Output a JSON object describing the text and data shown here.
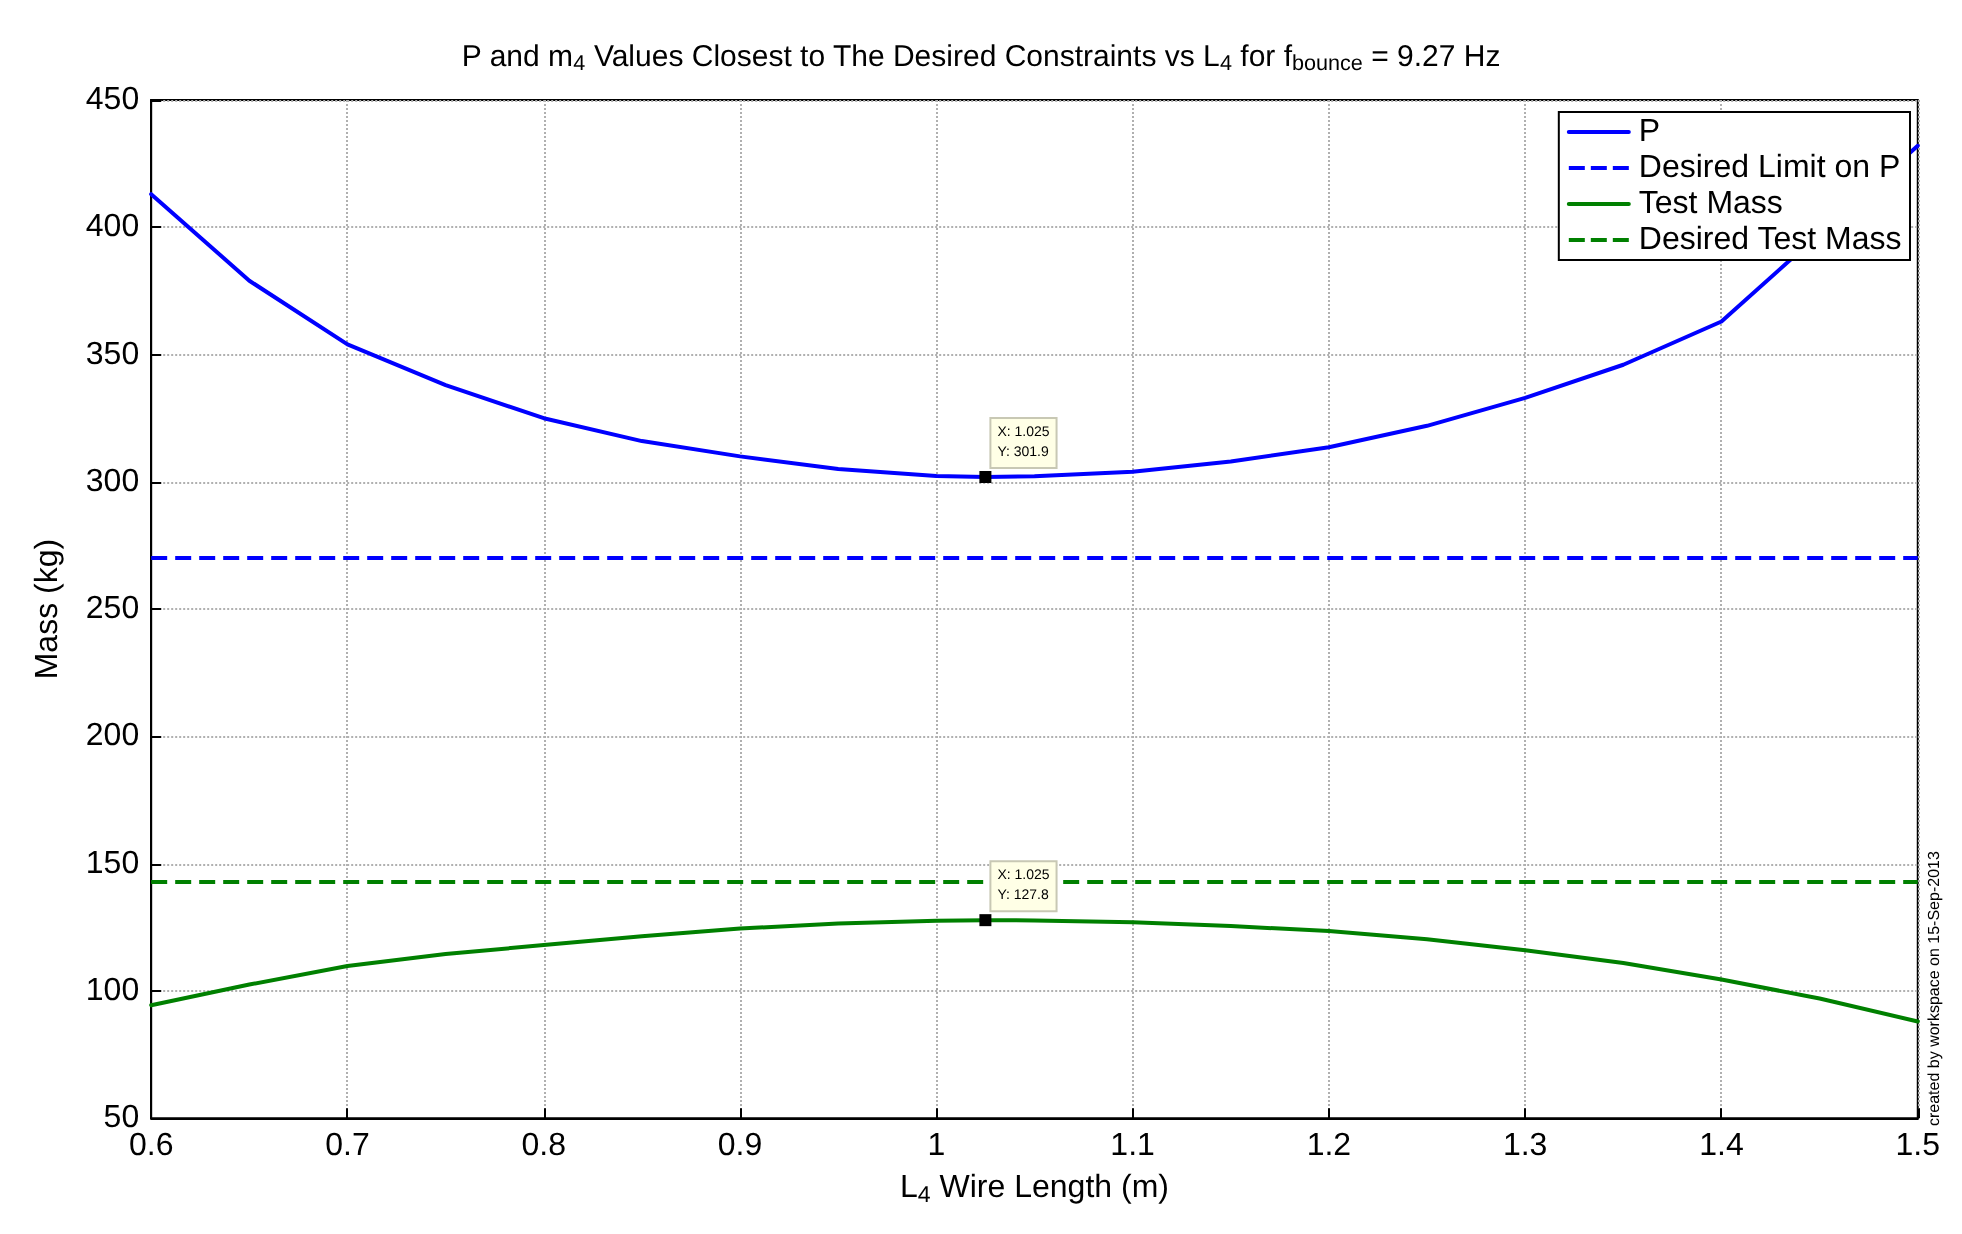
{
  "chart_data": {
    "type": "line",
    "title": "P and m$_{4}$ Values Closest to The Desired Constraints vs L$_{4}$ for f$_{bounce}$ = 9.27 Hz",
    "xlabel": "L$_{4}$ Wire Length (m)",
    "ylabel": "Mass (kg)",
    "x": [
      0.6,
      0.65,
      0.7,
      0.75,
      0.8,
      0.85,
      0.9,
      0.95,
      1.0,
      1.025,
      1.05,
      1.1,
      1.15,
      1.2,
      1.25,
      1.3,
      1.35,
      1.4,
      1.45,
      1.5
    ],
    "series": [
      {
        "name": "P",
        "color": "#0000ff",
        "line_style": "solid",
        "values": [
          413,
          379,
          354,
          338,
          325,
          316,
          310,
          305,
          302.3,
          301.9,
          302.2,
          304,
          308,
          313.6,
          322,
          333,
          346,
          363,
          null,
          432
        ]
      },
      {
        "name": "Test Mass",
        "color": "#008000",
        "line_style": "solid",
        "values": [
          94.4,
          102.5,
          109.8,
          114.5,
          118,
          121.5,
          124.5,
          126.5,
          127.6,
          127.8,
          127.7,
          127,
          125.5,
          123.5,
          120.3,
          116,
          111,
          104.5,
          97,
          88
        ]
      }
    ],
    "ref_lines": [
      {
        "axis": "y",
        "value": 270,
        "label": "Desired Limit on P",
        "color": "#0000ff",
        "line_style": "dashed"
      },
      {
        "axis": "y",
        "value": 143,
        "label": "Desired Test Mass",
        "color": "#008000",
        "line_style": "dashed"
      }
    ],
    "xlim": [
      0.6,
      1.5
    ],
    "xticks": [
      0.6,
      0.7,
      0.8,
      0.9,
      1,
      1.1,
      1.2,
      1.3,
      1.4,
      1.5
    ],
    "ylim": [
      50,
      450
    ],
    "yticks": [
      50,
      100,
      150,
      200,
      250,
      300,
      350,
      400,
      450
    ],
    "grid": true,
    "legend": "top right",
    "marker": "none",
    "annotations": [
      {
        "text": "X: 1.025\nY: 301.9",
        "x": 1.025,
        "y": 301.9
      },
      {
        "text": "X: 1.025\nY: 127.8",
        "x": 1.025,
        "y": 127.8
      },
      "created by workspace on 15-Sep-2013"
    ]
  }
}
